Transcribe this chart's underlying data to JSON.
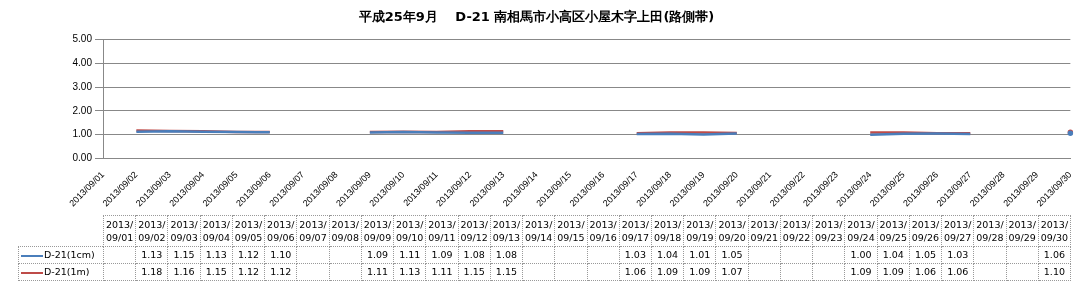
{
  "chart_data": {
    "type": "line",
    "title": "平成25年9月　 D-21 南相馬市小高区小屋木字上田(路側帯)",
    "categories": [
      "2013/09/01",
      "2013/09/02",
      "2013/09/03",
      "2013/09/04",
      "2013/09/05",
      "2013/09/06",
      "2013/09/07",
      "2013/09/08",
      "2013/09/09",
      "2013/09/10",
      "2013/09/11",
      "2013/09/12",
      "2013/09/13",
      "2013/09/14",
      "2013/09/15",
      "2013/09/16",
      "2013/09/17",
      "2013/09/18",
      "2013/09/19",
      "2013/09/20",
      "2013/09/21",
      "2013/09/22",
      "2013/09/23",
      "2013/09/24",
      "2013/09/25",
      "2013/09/26",
      "2013/09/27",
      "2013/09/28",
      "2013/09/29",
      "2013/09/30"
    ],
    "series": [
      {
        "name": "D-21(1cm)",
        "color": "#4a7ebb",
        "values": [
          null,
          1.13,
          1.15,
          1.13,
          1.12,
          1.1,
          null,
          null,
          1.09,
          1.11,
          1.09,
          1.08,
          1.08,
          null,
          null,
          null,
          1.03,
          1.04,
          1.01,
          1.05,
          null,
          null,
          null,
          1.0,
          1.04,
          1.05,
          1.03,
          null,
          null,
          1.06
        ],
        "value_labels": [
          null,
          "1.13",
          "1.15",
          "1.13",
          "1.12",
          "1.10",
          null,
          null,
          "1.09",
          "1.11",
          "1.09",
          "1.08",
          "1.08",
          null,
          null,
          null,
          "1.03",
          "1.04",
          "1.01",
          "1.05",
          null,
          null,
          null,
          "1.00",
          "1.04",
          "1.05",
          "1.03",
          null,
          null,
          "1.06"
        ]
      },
      {
        "name": "D-21(1m)",
        "color": "#be4b48",
        "values": [
          null,
          1.18,
          1.16,
          1.15,
          1.12,
          1.12,
          null,
          null,
          1.11,
          1.13,
          1.11,
          1.15,
          1.15,
          null,
          null,
          null,
          1.06,
          1.09,
          1.09,
          1.07,
          null,
          null,
          null,
          1.09,
          1.09,
          1.06,
          1.06,
          null,
          null,
          1.1
        ],
        "value_labels": [
          null,
          "1.18",
          "1.16",
          "1.15",
          "1.12",
          "1.12",
          null,
          null,
          "1.11",
          "1.13",
          "1.11",
          "1.15",
          "1.15",
          null,
          null,
          null,
          "1.06",
          "1.09",
          "1.09",
          "1.07",
          null,
          null,
          null,
          "1.09",
          "1.09",
          "1.06",
          "1.06",
          null,
          null,
          "1.10"
        ]
      }
    ],
    "ylim": [
      0,
      5
    ],
    "yticks": [
      {
        "value": 0,
        "label": "0.00"
      },
      {
        "value": 1,
        "label": "1.00"
      },
      {
        "value": 2,
        "label": "2.00"
      },
      {
        "value": 3,
        "label": "3.00"
      },
      {
        "value": 4,
        "label": "4.00"
      },
      {
        "value": 5,
        "label": "5.00"
      }
    ],
    "grid": "y",
    "marker": "none",
    "line_style": "solid",
    "legend": "bottom"
  }
}
